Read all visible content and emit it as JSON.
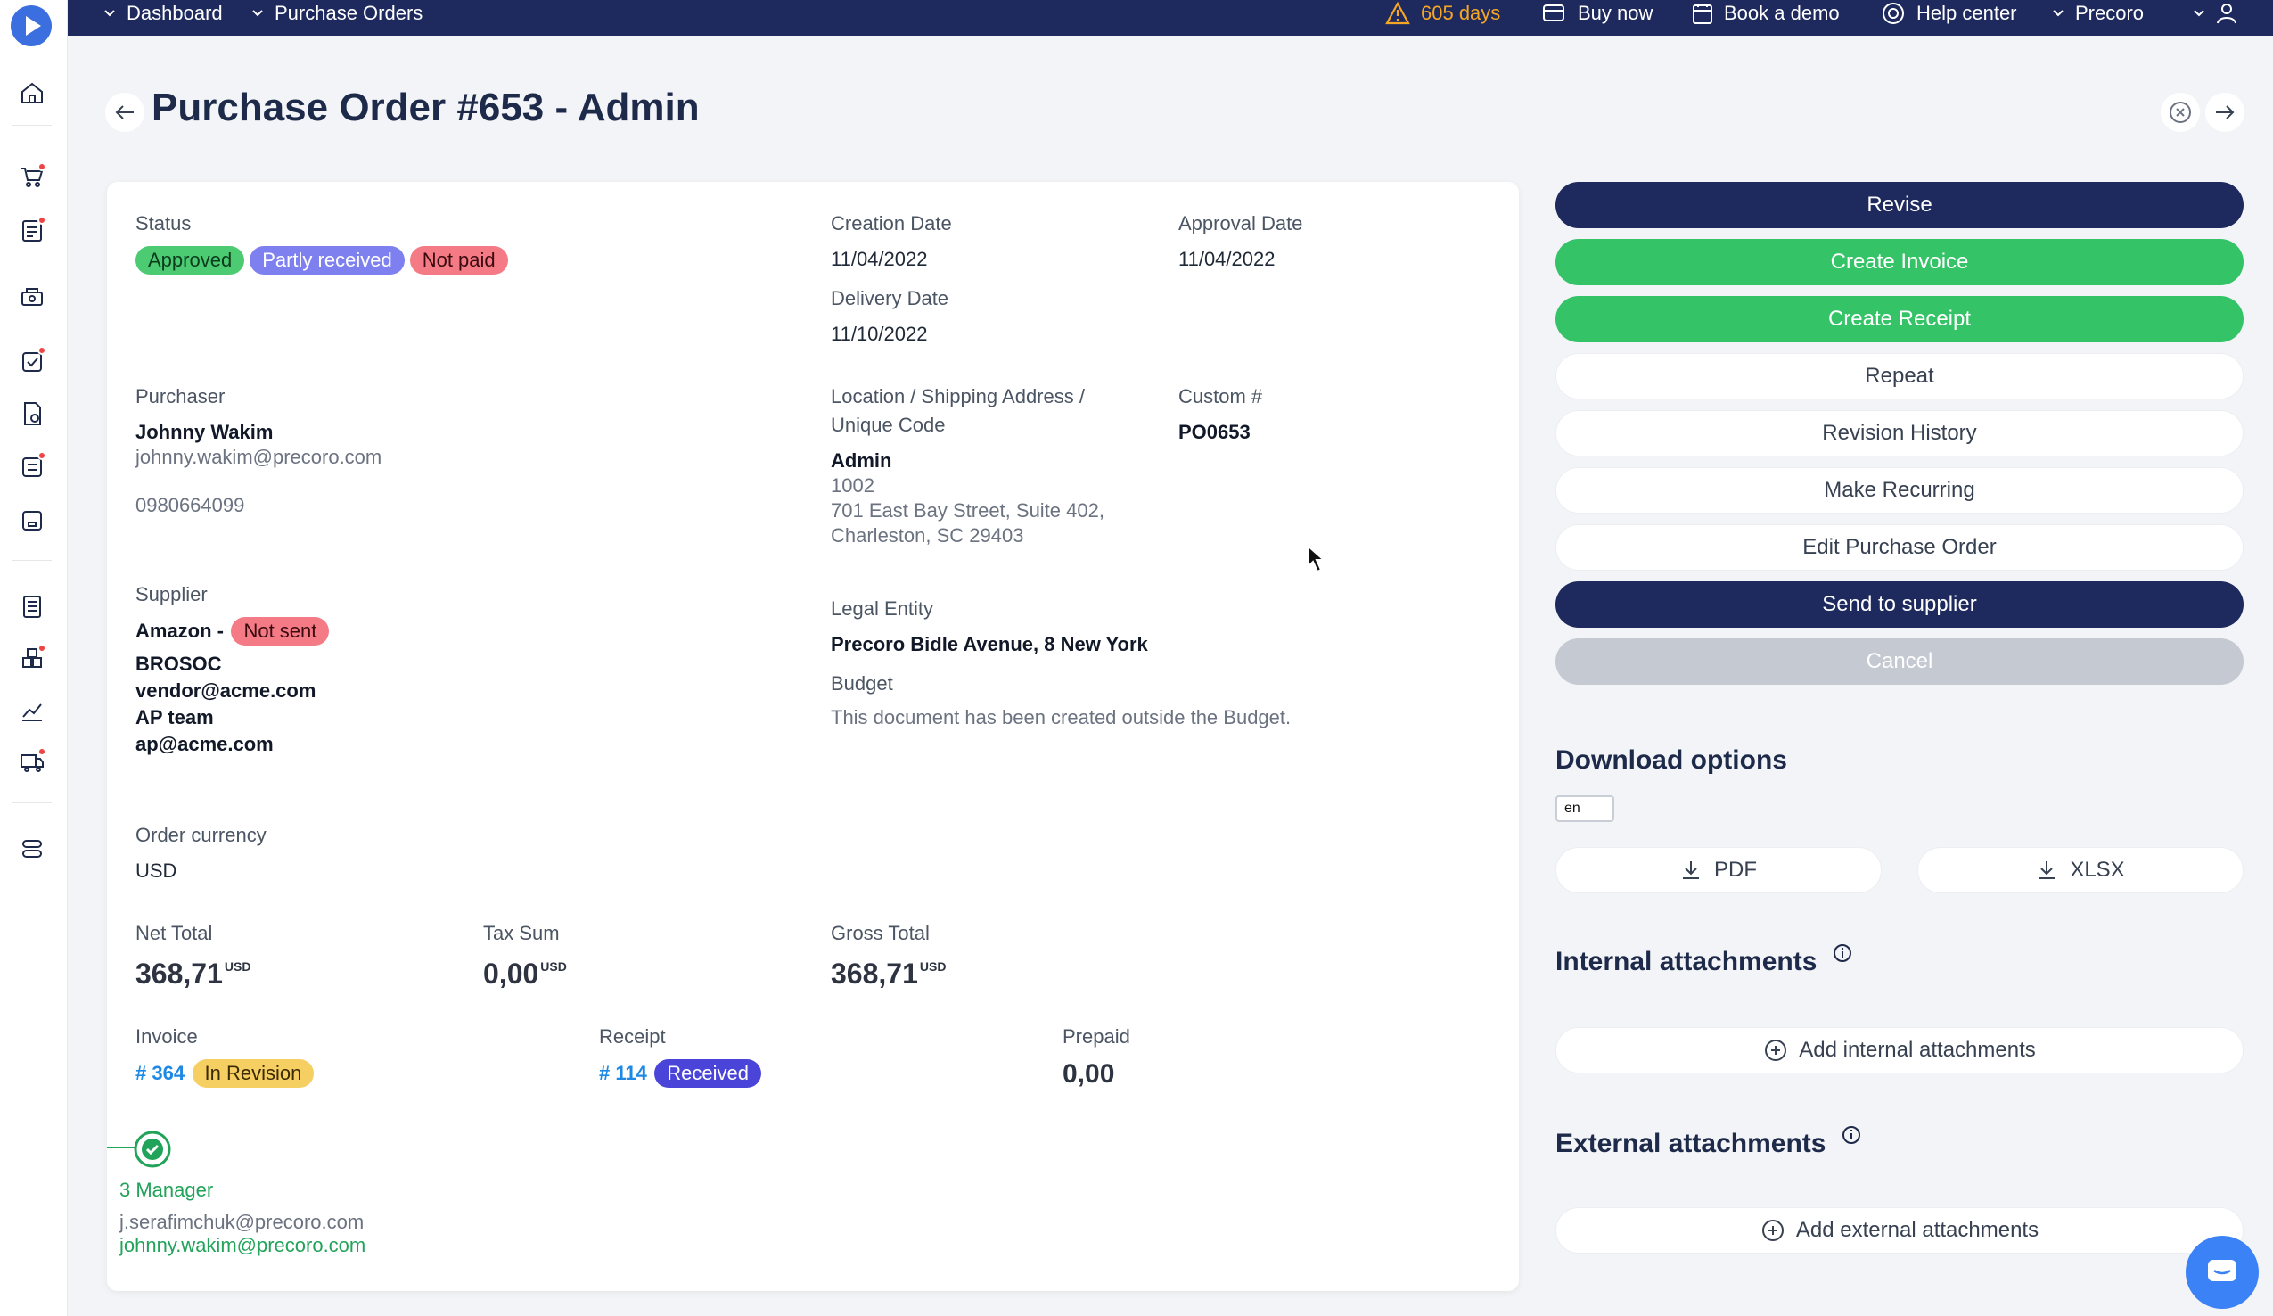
{
  "topbar": {
    "breadcrumb": [
      "Dashboard",
      "Purchase Orders"
    ],
    "trial_warning": "605 days",
    "buy_now": "Buy now",
    "book_demo": "Book a demo",
    "help_center": "Help center",
    "company": "Precoro"
  },
  "sidebar": {
    "icons": [
      "home-icon",
      "purchase-requests-icon",
      "purchase-orders-icon",
      "suppliers-icon",
      "receipts-icon",
      "invoices-icon",
      "inventory-icon",
      "warehouse-icon",
      "budgets-icon",
      "catalog-icon",
      "analytics-icon",
      "delivery-icon",
      "settings-icon"
    ]
  },
  "header": {
    "title": "Purchase Order #653 - Admin"
  },
  "details": {
    "status_label": "Status",
    "status_badges": [
      "Approved",
      "Partly received",
      "Not paid"
    ],
    "creation_date_label": "Creation Date",
    "creation_date": "11/04/2022",
    "approval_date_label": "Approval Date",
    "approval_date": "11/04/2022",
    "delivery_date_label": "Delivery Date",
    "delivery_date": "11/10/2022",
    "purchaser_label": "Purchaser",
    "purchaser_name": "Johnny Wakim",
    "purchaser_email": "johnny.wakim@precoro.com",
    "purchaser_phone": "0980664099",
    "location_label_1": "Location / Shipping Address /",
    "location_label_2": "Unique Code",
    "location_name": "Admin",
    "location_code": "1002",
    "location_address_1": "701 East Bay Street, Suite 402,",
    "location_address_2": "Charleston, SC 29403",
    "custom_label": "Custom #",
    "custom_value": "PO0653",
    "supplier_label": "Supplier",
    "supplier_name": "Amazon -",
    "supplier_badge": "Not sent",
    "supplier_lines": [
      "BROSOC",
      "vendor@acme.com",
      "AP team",
      "ap@acme.com"
    ],
    "legal_entity_label": "Legal Entity",
    "legal_entity": "Precoro Bidle Avenue, 8 New York",
    "budget_label": "Budget",
    "budget_note": "This document has been created outside the Budget.",
    "currency_label": "Order currency",
    "currency": "USD",
    "net_total_label": "Net Total",
    "net_total": "368,71",
    "tax_sum_label": "Tax Sum",
    "tax_sum": "0,00",
    "gross_total_label": "Gross Total",
    "gross_total": "368,71",
    "amount_unit": "USD",
    "invoice_label": "Invoice",
    "invoice_link": "# 364",
    "invoice_badge": "In Revision",
    "receipt_label": "Receipt",
    "receipt_link": "# 114",
    "receipt_badge": "Received",
    "prepaid_label": "Prepaid",
    "prepaid": "0,00",
    "approval_step": "3 Manager",
    "approver_1": "j.serafimchuk@precoro.com",
    "approver_2": "johnny.wakim@precoro.com"
  },
  "actions": {
    "revise": "Revise",
    "create_invoice": "Create Invoice",
    "create_receipt": "Create Receipt",
    "repeat": "Repeat",
    "revision_history": "Revision History",
    "make_recurring": "Make Recurring",
    "edit": "Edit Purchase Order",
    "send": "Send to supplier",
    "cancel": "Cancel"
  },
  "downloads": {
    "title": "Download options",
    "language": "en",
    "pdf": "PDF",
    "xlsx": "XLSX"
  },
  "attachments": {
    "internal_title": "Internal attachments",
    "internal_add": "Add internal attachments",
    "external_title": "External attachments",
    "external_add": "Add external attachments"
  },
  "colors": {
    "navy": "#1e2a5e",
    "green": "#34c367",
    "accent_blue": "#3b82f6",
    "warning": "#f5a623"
  }
}
